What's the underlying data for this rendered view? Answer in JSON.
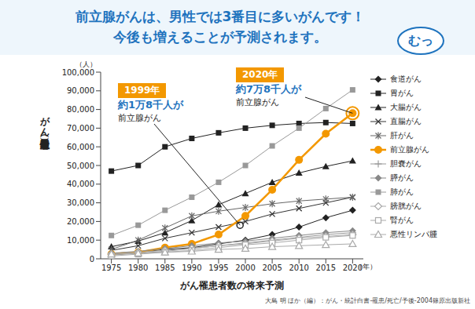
{
  "chart_data": {
    "type": "line",
    "title": [
      "前立腺がんは、男性では3番目に多いがんです！",
      "今後も増えることが予測されます。"
    ],
    "badge": "むっ",
    "y_label": "がん罹患者数（男性）",
    "y_unit": "（人）",
    "x_label": "がん罹患者数の将来予測",
    "x_unit": "（年）",
    "source": "大島 明 ほか（編）：がん・統計白書-罹患/死亡/予後-2004篠原出版新社",
    "x": [
      1975,
      1980,
      1985,
      1990,
      1995,
      2000,
      2005,
      2010,
      2015,
      2020
    ],
    "xlim": [
      1973,
      2022
    ],
    "xticks": [
      1975,
      1980,
      1985,
      1990,
      1995,
      2000,
      2005,
      2010,
      2015,
      2020
    ],
    "ylim": [
      0,
      100000
    ],
    "yticks": [
      0,
      {
        "value": 10000,
        "label": "10,000"
      },
      {
        "value": 20000,
        "label": "20,000"
      },
      {
        "value": 30000,
        "label": "30,000"
      },
      {
        "value": 40000,
        "label": "40,000"
      },
      {
        "value": 50000,
        "label": "50,000"
      },
      {
        "value": 60000,
        "label": "60,000"
      },
      {
        "value": 70000,
        "label": "70,000"
      },
      {
        "value": 80000,
        "label": "80,000"
      },
      {
        "value": 90000,
        "label": "90,000"
      },
      {
        "value": 100000,
        "label": "100,000"
      }
    ],
    "grid": false,
    "legend": "right",
    "series": [
      {
        "name": "食道がん",
        "color": "#222222",
        "marker": "diamond",
        "values": [
          3000,
          3500,
          5000,
          6000,
          8000,
          10000,
          13000,
          17000,
          22000,
          26000
        ]
      },
      {
        "name": "胃がん",
        "color": "#222222",
        "marker": "square",
        "values": [
          47000,
          50000,
          60000,
          64500,
          67500,
          70000,
          71500,
          72500,
          73000,
          72500
        ]
      },
      {
        "name": "大腸がん",
        "color": "#222222",
        "marker": "triangle",
        "values": [
          6500,
          9500,
          14000,
          20500,
          29000,
          35000,
          41000,
          46000,
          49500,
          52500
        ]
      },
      {
        "name": "直腸がん",
        "color": "#333333",
        "marker": "x",
        "values": [
          4500,
          7000,
          11000,
          14000,
          17000,
          20000,
          24000,
          27000,
          30000,
          33000
        ]
      },
      {
        "name": "肝がん",
        "color": "#666666",
        "marker": "star",
        "values": [
          5000,
          10000,
          16500,
          23000,
          25500,
          27500,
          29500,
          31000,
          32000,
          33000
        ]
      },
      {
        "name": "前立腺がん",
        "color": "#f39800",
        "marker": "circle",
        "values": [
          2500,
          3500,
          6000,
          8000,
          13000,
          23000,
          37000,
          53000,
          67000,
          78000
        ]
      },
      {
        "name": "胆嚢がん",
        "color": "#999999",
        "marker": "plus",
        "values": [
          2000,
          3000,
          4000,
          5500,
          7000,
          8500,
          10000,
          11500,
          13000,
          14000
        ]
      },
      {
        "name": "膵がん",
        "color": "#888888",
        "marker": "diamond",
        "values": [
          3000,
          4000,
          5500,
          7000,
          8500,
          9500,
          11000,
          12500,
          14000,
          15000
        ]
      },
      {
        "name": "肺がん",
        "color": "#999999",
        "marker": "square",
        "values": [
          12500,
          18000,
          26000,
          33000,
          41000,
          50000,
          60500,
          70000,
          80500,
          90500
        ]
      },
      {
        "name": "膀胱がん",
        "color": "#aaaaaa",
        "marker": "diamond_open",
        "values": [
          2500,
          3500,
          4500,
          5500,
          7000,
          8000,
          9500,
          11000,
          12000,
          13000
        ]
      },
      {
        "name": "腎がん",
        "color": "#aaaaaa",
        "marker": "square_open",
        "values": [
          1500,
          2500,
          3500,
          4500,
          6000,
          7500,
          8500,
          10000,
          11500,
          12500
        ]
      },
      {
        "name": "悪性リンパ腫",
        "color": "#aaaaaa",
        "marker": "triangle_open",
        "values": [
          2500,
          3000,
          3500,
          4000,
          5000,
          5500,
          6500,
          7000,
          7500,
          8000
        ]
      }
    ],
    "annotations": [
      {
        "x": 1999,
        "y": 18000,
        "label": "1999年",
        "text": [
          "約1万8千人が",
          "前立腺がん"
        ]
      },
      {
        "x": 2020,
        "y": 78000,
        "label": "2020年",
        "text": [
          "約7万8千人が",
          "前立腺がん"
        ]
      }
    ]
  }
}
